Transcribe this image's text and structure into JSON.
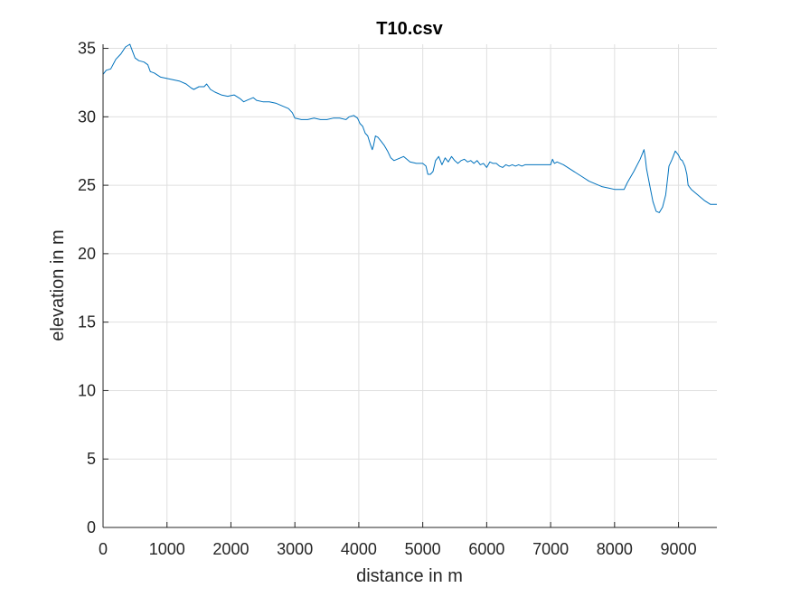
{
  "chart_data": {
    "type": "line",
    "title": "T10.csv",
    "xlabel": "distance in m",
    "ylabel": "elevation in m",
    "xlim": [
      0,
      9600
    ],
    "ylim": [
      0,
      35.3
    ],
    "xticks": [
      0,
      1000,
      2000,
      3000,
      4000,
      5000,
      6000,
      7000,
      8000,
      9000
    ],
    "yticks": [
      0,
      5,
      10,
      15,
      20,
      25,
      30,
      35
    ],
    "grid": true,
    "line_color": "#0072BD",
    "series": [
      {
        "x": [
          0,
          50,
          120,
          200,
          280,
          350,
          420,
          460,
          500,
          560,
          640,
          700,
          740,
          800,
          900,
          1000,
          1100,
          1200,
          1300,
          1380,
          1420,
          1500,
          1580,
          1620,
          1680,
          1750,
          1850,
          1950,
          2050,
          2150,
          2200,
          2250,
          2300,
          2350,
          2400,
          2500,
          2600,
          2700,
          2800,
          2900,
          2960,
          3000,
          3100,
          3200,
          3300,
          3400,
          3500,
          3600,
          3700,
          3800,
          3850,
          3920,
          3980,
          4020,
          4060,
          4100,
          4140,
          4180,
          4210,
          4230,
          4260,
          4300,
          4350,
          4400,
          4450,
          4500,
          4550,
          4600,
          4650,
          4700,
          4750,
          4800,
          4900,
          5000,
          5050,
          5080,
          5120,
          5160,
          5200,
          5250,
          5300,
          5350,
          5400,
          5450,
          5500,
          5550,
          5600,
          5650,
          5700,
          5750,
          5800,
          5850,
          5900,
          5950,
          6000,
          6050,
          6100,
          6150,
          6200,
          6250,
          6300,
          6350,
          6400,
          6450,
          6500,
          6550,
          6600,
          6700,
          6800,
          6900,
          7000,
          7030,
          7060,
          7100,
          7200,
          7300,
          7400,
          7500,
          7600,
          7700,
          7800,
          7900,
          8000,
          8100,
          8150,
          8200,
          8300,
          8400,
          8460,
          8480,
          8500,
          8550,
          8600,
          8650,
          8700,
          8750,
          8800,
          8830,
          8850,
          8900,
          8950,
          9000,
          9030,
          9060,
          9100,
          9130,
          9150,
          9200,
          9300,
          9400,
          9500,
          9550,
          9600
        ],
        "y": [
          33.1,
          33.4,
          33.5,
          34.2,
          34.6,
          35.1,
          35.3,
          34.8,
          34.3,
          34.1,
          34.0,
          33.8,
          33.3,
          33.2,
          32.9,
          32.8,
          32.7,
          32.6,
          32.4,
          32.1,
          32.0,
          32.2,
          32.2,
          32.4,
          32.0,
          31.8,
          31.6,
          31.5,
          31.6,
          31.3,
          31.1,
          31.2,
          31.3,
          31.4,
          31.2,
          31.1,
          31.1,
          31.0,
          30.8,
          30.6,
          30.3,
          29.9,
          29.8,
          29.8,
          29.9,
          29.8,
          29.8,
          29.9,
          29.9,
          29.8,
          30.0,
          30.1,
          29.9,
          29.5,
          29.3,
          28.8,
          28.6,
          28.0,
          27.6,
          27.9,
          28.6,
          28.5,
          28.2,
          27.9,
          27.5,
          27.0,
          26.8,
          26.9,
          27.0,
          27.1,
          26.9,
          26.7,
          26.6,
          26.6,
          26.4,
          25.8,
          25.8,
          26.0,
          26.8,
          27.1,
          26.5,
          27.0,
          26.7,
          27.1,
          26.8,
          26.6,
          26.8,
          26.9,
          26.7,
          26.8,
          26.6,
          26.8,
          26.5,
          26.6,
          26.3,
          26.7,
          26.6,
          26.6,
          26.4,
          26.3,
          26.5,
          26.4,
          26.5,
          26.4,
          26.5,
          26.4,
          26.5,
          26.5,
          26.5,
          26.5,
          26.5,
          26.9,
          26.6,
          26.7,
          26.5,
          26.2,
          25.9,
          25.6,
          25.3,
          25.1,
          24.9,
          24.8,
          24.7,
          24.7,
          24.7,
          25.2,
          26.0,
          26.9,
          27.6,
          27.0,
          26.2,
          25.0,
          23.8,
          23.1,
          23.0,
          23.4,
          24.3,
          25.5,
          26.4,
          26.9,
          27.5,
          27.2,
          26.9,
          26.8,
          26.4,
          25.8,
          25.0,
          24.7,
          24.3,
          23.9,
          23.6,
          23.6,
          23.6
        ]
      }
    ]
  }
}
